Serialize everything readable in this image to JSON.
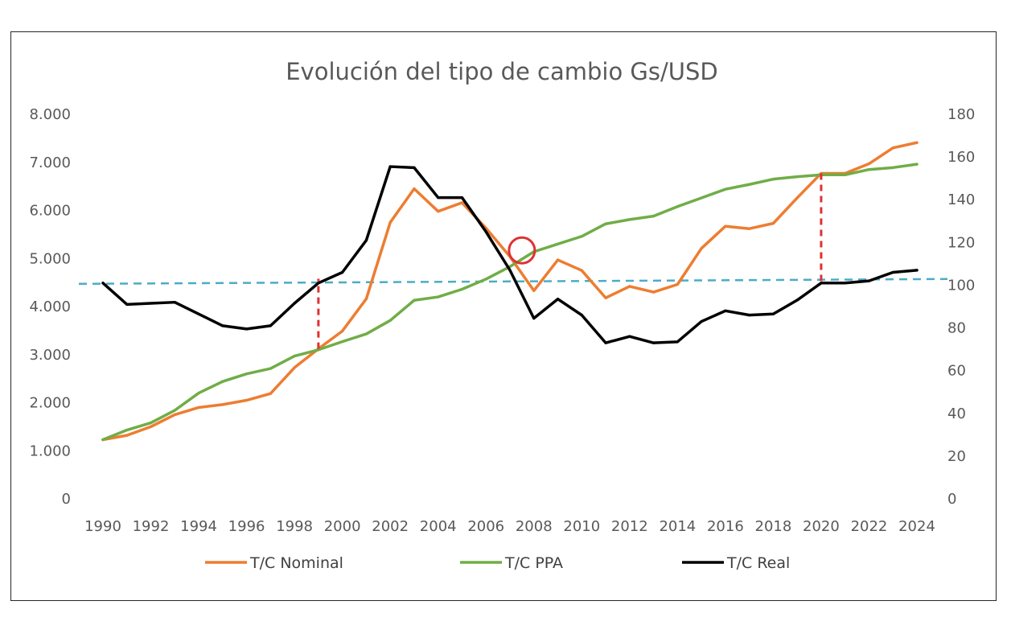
{
  "chart_data": {
    "type": "line",
    "title": "Evolución del tipo de cambio Gs/USD",
    "xlabel": "",
    "ylabel_left": "",
    "ylabel_right": "",
    "x": [
      1990,
      1991,
      1992,
      1993,
      1994,
      1995,
      1996,
      1997,
      1998,
      1999,
      2000,
      2001,
      2002,
      2003,
      2004,
      2005,
      2006,
      2007,
      2008,
      2009,
      2010,
      2011,
      2012,
      2013,
      2014,
      2015,
      2016,
      2017,
      2018,
      2019,
      2020,
      2021,
      2022,
      2023,
      2024
    ],
    "x_tick_labels": [
      "1990",
      "1992",
      "1994",
      "1996",
      "1998",
      "2000",
      "2002",
      "2004",
      "2006",
      "2008",
      "2010",
      "2012",
      "2014",
      "2016",
      "2018",
      "2020",
      "2022",
      "2024"
    ],
    "y_left_ticks": [
      "0",
      "1.000",
      "2.000",
      "3.000",
      "4.000",
      "5.000",
      "6.000",
      "7.000",
      "8.000"
    ],
    "y_left_range": [
      0,
      8000
    ],
    "y_right_ticks": [
      "0",
      "20",
      "40",
      "60",
      "80",
      "100",
      "120",
      "140",
      "160",
      "180"
    ],
    "y_right_range": [
      0,
      180
    ],
    "grid": false,
    "legend_position": "bottom",
    "series": [
      {
        "name": "T/C Nominal",
        "axis": "left",
        "color": "#ED7D31",
        "values": [
          1230,
          1320,
          1500,
          1750,
          1900,
          1960,
          2050,
          2190,
          2730,
          3120,
          3490,
          4160,
          5750,
          6450,
          5980,
          6160,
          5630,
          5040,
          4330,
          4970,
          4750,
          4180,
          4420,
          4300,
          4460,
          5210,
          5670,
          5620,
          5730,
          6260,
          6770,
          6770,
          6970,
          7300,
          7410
        ]
      },
      {
        "name": "T/C PPA",
        "axis": "left",
        "color": "#70AD47",
        "values": [
          1230,
          1430,
          1580,
          1840,
          2200,
          2440,
          2600,
          2710,
          2970,
          3100,
          3270,
          3430,
          3710,
          4130,
          4200,
          4360,
          4570,
          4830,
          5140,
          5300,
          5460,
          5720,
          5810,
          5880,
          6080,
          6260,
          6440,
          6540,
          6650,
          6700,
          6740,
          6740,
          6850,
          6890,
          6960
        ]
      },
      {
        "name": "T/C Real",
        "axis": "right",
        "color": "#000000",
        "values": [
          101,
          91,
          91.5,
          92,
          86.5,
          81,
          79.5,
          81,
          91.5,
          101,
          106,
          121,
          155.5,
          155,
          141,
          141,
          125,
          107,
          84.5,
          93.5,
          86,
          73,
          76,
          73,
          73.5,
          83,
          88,
          86,
          86.5,
          93,
          101,
          101,
          102,
          106,
          107
        ]
      }
    ],
    "annotations": [
      {
        "type": "horizontal-line",
        "axis": "right",
        "value": 101,
        "color": "#4BACC6",
        "style": "dashed"
      },
      {
        "type": "vertical-segment",
        "x": 1999,
        "from_left": 3120,
        "to_right": 103,
        "color": "#E03131",
        "style": "dashed"
      },
      {
        "type": "vertical-segment",
        "x": 2020,
        "from_left": 6770,
        "to_right": 101,
        "color": "#E03131",
        "style": "dashed"
      },
      {
        "type": "circle",
        "x": 2007.5,
        "left_value": 5000,
        "color": "#E03131"
      }
    ]
  }
}
